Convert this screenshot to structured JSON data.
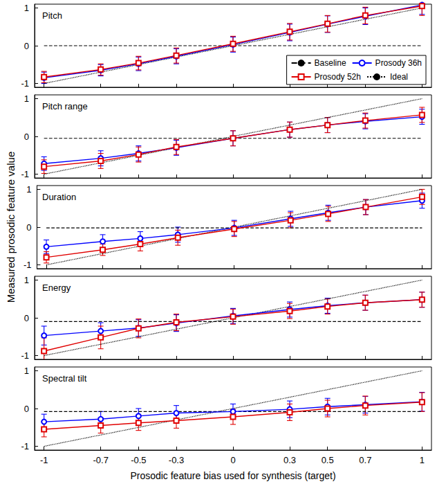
{
  "chart_data": {
    "type": "line",
    "x_label": "Prosodic feature bias used for synthesis (target)",
    "y_label": "Measured prosodic feature value",
    "x": [
      -1,
      -0.7,
      -0.5,
      -0.3,
      0,
      0.3,
      0.5,
      0.7,
      1
    ],
    "xlim": [
      -1.05,
      1.05
    ],
    "xticks": [
      -1,
      -0.7,
      -0.5,
      -0.3,
      0,
      0.3,
      0.5,
      0.7,
      1
    ],
    "legend": "lower right",
    "grid": false,
    "subplots": [
      {
        "title": "Pitch",
        "ylim": [
          -1.1,
          1.1
        ],
        "yticks": [
          -1,
          0,
          1
        ],
        "series": [
          {
            "name": "Baseline",
            "color": "#000000",
            "marker": "none",
            "line_style": "dashed",
            "values": [
              0,
              0,
              0,
              0,
              0,
              0,
              0,
              0,
              0
            ]
          },
          {
            "name": "Prosody 36h",
            "color": "#0000ff",
            "marker": "circle",
            "line_style": "solid",
            "values": [
              -0.85,
              -0.65,
              -0.48,
              -0.28,
              0.03,
              0.35,
              0.57,
              0.78,
              1.08
            ],
            "errors": [
              0.15,
              0.15,
              0.18,
              0.2,
              0.2,
              0.22,
              0.22,
              0.22,
              0.25
            ]
          },
          {
            "name": "Prosody 52h",
            "color": "#e00000",
            "marker": "square",
            "line_style": "solid",
            "values": [
              -0.83,
              -0.63,
              -0.46,
              -0.26,
              0.05,
              0.37,
              0.58,
              0.8,
              1.05
            ],
            "errors": [
              0.15,
              0.15,
              0.18,
              0.2,
              0.2,
              0.22,
              0.22,
              0.22,
              0.25
            ]
          },
          {
            "name": "Ideal",
            "color": "#000000",
            "marker": "none",
            "line_style": "dotted",
            "values": [
              -1,
              -0.7,
              -0.5,
              -0.3,
              0,
              0.3,
              0.5,
              0.7,
              1
            ]
          }
        ]
      },
      {
        "title": "Pitch range",
        "ylim": [
          -1.1,
          1.1
        ],
        "yticks": [
          -1,
          0,
          1
        ],
        "series": [
          {
            "name": "Baseline",
            "color": "#000000",
            "marker": "none",
            "line_style": "dashed",
            "values": [
              -0.05,
              -0.05,
              -0.05,
              -0.05,
              -0.05,
              -0.05,
              -0.05,
              -0.05,
              -0.05
            ]
          },
          {
            "name": "Prosody 36h",
            "color": "#0000ff",
            "marker": "circle",
            "line_style": "solid",
            "values": [
              -0.72,
              -0.58,
              -0.45,
              -0.3,
              -0.05,
              0.18,
              0.3,
              0.4,
              0.52
            ],
            "errors": [
              0.18,
              0.2,
              0.2,
              0.2,
              0.2,
              0.2,
              0.2,
              0.2,
              0.2
            ]
          },
          {
            "name": "Prosody 52h",
            "color": "#e00000",
            "marker": "square",
            "line_style": "solid",
            "values": [
              -0.8,
              -0.65,
              -0.48,
              -0.28,
              -0.05,
              0.18,
              0.3,
              0.42,
              0.57
            ],
            "errors": [
              0.18,
              0.2,
              0.2,
              0.2,
              0.2,
              0.2,
              0.2,
              0.2,
              0.2
            ]
          },
          {
            "name": "Ideal",
            "color": "#000000",
            "marker": "none",
            "line_style": "dotted",
            "values": [
              -1,
              -0.7,
              -0.5,
              -0.3,
              0,
              0.3,
              0.5,
              0.7,
              1
            ]
          }
        ]
      },
      {
        "title": "Duration",
        "ylim": [
          -1.1,
          1.1
        ],
        "yticks": [
          -1,
          0,
          1
        ],
        "series": [
          {
            "name": "Baseline",
            "color": "#000000",
            "marker": "none",
            "line_style": "dashed",
            "values": [
              -0.02,
              -0.02,
              -0.02,
              -0.02,
              -0.02,
              -0.02,
              -0.02,
              -0.02,
              -0.02
            ]
          },
          {
            "name": "Prosody 36h",
            "color": "#0000ff",
            "marker": "circle",
            "line_style": "solid",
            "values": [
              -0.52,
              -0.38,
              -0.3,
              -0.2,
              -0.02,
              0.22,
              0.38,
              0.53,
              0.7
            ],
            "errors": [
              0.18,
              0.18,
              0.18,
              0.2,
              0.2,
              0.2,
              0.2,
              0.2,
              0.2
            ]
          },
          {
            "name": "Prosody 52h",
            "color": "#e00000",
            "marker": "square",
            "line_style": "solid",
            "values": [
              -0.8,
              -0.6,
              -0.45,
              -0.28,
              -0.05,
              0.18,
              0.35,
              0.53,
              0.8
            ],
            "errors": [
              0.15,
              0.15,
              0.18,
              0.2,
              0.2,
              0.2,
              0.2,
              0.2,
              0.2
            ]
          },
          {
            "name": "Ideal",
            "color": "#000000",
            "marker": "none",
            "line_style": "dotted",
            "values": [
              -1,
              -0.7,
              -0.5,
              -0.3,
              0,
              0.3,
              0.5,
              0.7,
              1
            ]
          }
        ]
      },
      {
        "title": "Energy",
        "ylim": [
          -1.1,
          1.1
        ],
        "yticks": [
          -1,
          0,
          1
        ],
        "series": [
          {
            "name": "Baseline",
            "color": "#000000",
            "marker": "none",
            "line_style": "dashed",
            "values": [
              -0.1,
              -0.1,
              -0.1,
              -0.1,
              -0.1,
              -0.1,
              -0.1,
              -0.1,
              -0.1
            ]
          },
          {
            "name": "Prosody 36h",
            "color": "#0000ff",
            "marker": "circle",
            "line_style": "solid",
            "values": [
              -0.47,
              -0.35,
              -0.27,
              -0.14,
              0.05,
              0.22,
              0.32,
              0.4,
              0.48
            ],
            "errors": [
              0.25,
              0.22,
              0.22,
              0.22,
              0.2,
              0.2,
              0.2,
              0.2,
              0.2
            ]
          },
          {
            "name": "Prosody 52h",
            "color": "#e00000",
            "marker": "square",
            "line_style": "solid",
            "values": [
              -0.88,
              -0.52,
              -0.28,
              -0.12,
              0.03,
              0.18,
              0.3,
              0.4,
              0.48
            ],
            "errors": [
              0.35,
              0.3,
              0.25,
              0.22,
              0.2,
              0.2,
              0.2,
              0.2,
              0.2
            ]
          },
          {
            "name": "Ideal",
            "color": "#000000",
            "marker": "none",
            "line_style": "dotted",
            "values": [
              -1,
              -0.7,
              -0.5,
              -0.3,
              0,
              0.3,
              0.5,
              0.7,
              1
            ]
          }
        ]
      },
      {
        "title": "Spectral tilt",
        "ylim": [
          -1.1,
          1.1
        ],
        "yticks": [
          -1,
          0,
          1
        ],
        "series": [
          {
            "name": "Baseline",
            "color": "#000000",
            "marker": "none",
            "line_style": "dashed",
            "values": [
              -0.08,
              -0.08,
              -0.08,
              -0.08,
              -0.08,
              -0.08,
              -0.08,
              -0.08,
              -0.08
            ]
          },
          {
            "name": "Prosody 36h",
            "color": "#0000ff",
            "marker": "circle",
            "line_style": "solid",
            "values": [
              -0.35,
              -0.28,
              -0.2,
              -0.12,
              -0.08,
              -0.02,
              0.05,
              0.1,
              0.18
            ],
            "errors": [
              0.2,
              0.2,
              0.2,
              0.2,
              0.2,
              0.22,
              0.22,
              0.22,
              0.25
            ]
          },
          {
            "name": "Prosody 52h",
            "color": "#e00000",
            "marker": "square",
            "line_style": "solid",
            "values": [
              -0.55,
              -0.45,
              -0.38,
              -0.32,
              -0.22,
              -0.1,
              0,
              0.08,
              0.17
            ],
            "errors": [
              0.2,
              0.2,
              0.2,
              0.2,
              0.2,
              0.22,
              0.22,
              0.25,
              0.25
            ]
          },
          {
            "name": "Ideal",
            "color": "#000000",
            "marker": "none",
            "line_style": "dotted",
            "values": [
              -1,
              -0.7,
              -0.5,
              -0.3,
              0,
              0.3,
              0.5,
              0.7,
              1
            ]
          }
        ]
      }
    ]
  }
}
